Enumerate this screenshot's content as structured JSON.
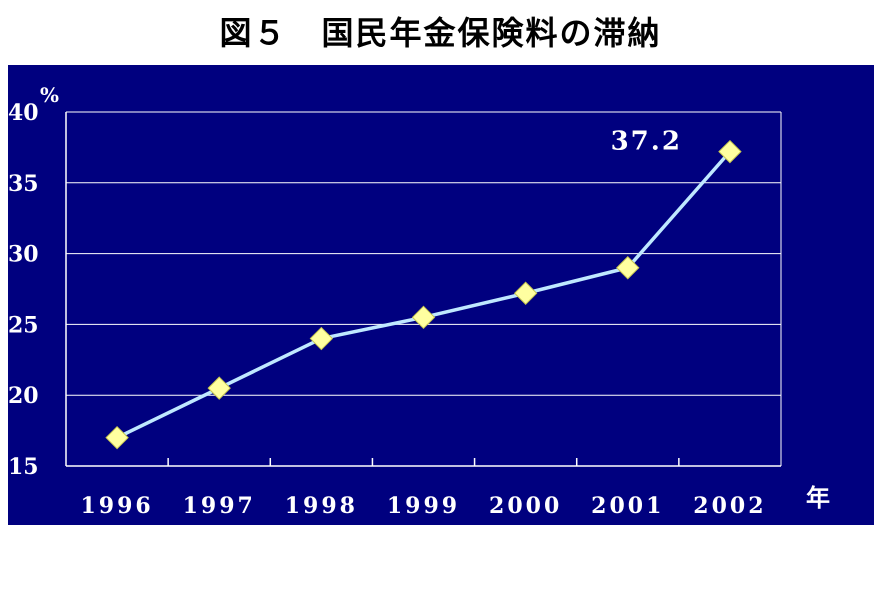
{
  "title": "図５　国民年金保険料の滞納",
  "chart_data": {
    "type": "line",
    "title": "図５　国民年金保険料の滞納",
    "ylabel": "%",
    "xlabel": "年",
    "categories": [
      "1996",
      "1997",
      "1998",
      "1999",
      "2000",
      "2001",
      "2002"
    ],
    "series": [
      {
        "values": [
          17.0,
          20.5,
          24.0,
          25.5,
          27.2,
          29.0,
          37.2
        ]
      }
    ],
    "ylim": [
      15,
      40
    ],
    "yticks": [
      "15",
      "20",
      "25",
      "30",
      "35",
      "40"
    ],
    "grid": true,
    "annotations": [
      {
        "category": "2002",
        "value": 37.2,
        "text": "37.2"
      }
    ],
    "colors": {
      "background": "#00007f",
      "line": "#bfe8ff",
      "marker": "#ffffa0",
      "grid": "#ffffff",
      "text": "#ffffff"
    }
  }
}
